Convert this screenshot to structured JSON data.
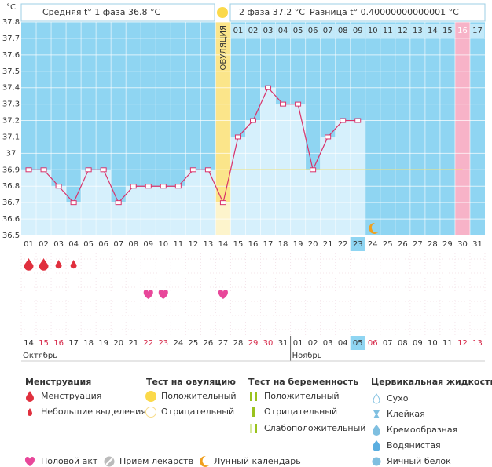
{
  "header": {
    "phase1": "Средняя t° 1 фаза 36.8 °C",
    "phase2": "2 фаза 37.2 °C",
    "difference": "Разница t° 0.40000000000001 °C"
  },
  "chart_data": {
    "type": "line",
    "y_unit": "°C",
    "categories": [
      "01",
      "02",
      "03",
      "04",
      "05",
      "06",
      "07",
      "08",
      "09",
      "10",
      "11",
      "12",
      "13",
      "14",
      "15",
      "16",
      "17",
      "18",
      "19",
      "20",
      "21",
      "22",
      "23",
      "24",
      "25",
      "26",
      "27",
      "28",
      "29",
      "30",
      "31"
    ],
    "values": [
      36.9,
      36.9,
      36.8,
      36.7,
      36.9,
      36.9,
      36.7,
      36.8,
      36.8,
      36.8,
      36.8,
      36.9,
      36.9,
      36.7,
      37.1,
      37.2,
      37.4,
      37.3,
      37.3,
      36.9,
      37.1,
      37.2,
      37.2,
      null,
      null,
      null,
      null,
      null,
      null,
      null,
      null
    ],
    "ylim": [
      36.5,
      37.8
    ],
    "yticks": [
      36.5,
      36.6,
      36.7,
      36.8,
      36.9,
      37,
      37.1,
      37.2,
      37.3,
      37.4,
      37.5,
      37.6,
      37.7,
      37.8
    ],
    "grid": true,
    "color": "#d9326a",
    "fill_color": "#d6f0fc",
    "background_color": "#8fd5f2",
    "ovulation_day": "14",
    "ovulation_label": "ОВУЛЯЦИЯ",
    "coverline": 36.9,
    "today": "23",
    "phase2_days": [
      "01",
      "02",
      "03",
      "04",
      "05",
      "06",
      "07",
      "08",
      "09",
      "10",
      "11",
      "12",
      "13",
      "14",
      "15",
      "16",
      "17"
    ],
    "phase2_highlight": "16",
    "dates": [
      "14",
      "15",
      "16",
      "17",
      "18",
      "19",
      "20",
      "21",
      "22",
      "23",
      "24",
      "25",
      "26",
      "27",
      "28",
      "29",
      "30",
      "31",
      "01",
      "02",
      "03",
      "04",
      "05",
      "06",
      "07",
      "08",
      "09",
      "10",
      "11",
      "12",
      "13"
    ],
    "date_colors": [
      "#333",
      "#d62a4a",
      "#d62a4a",
      "#333",
      "#333",
      "#333",
      "#333",
      "#333",
      "#d62a4a",
      "#d62a4a",
      "#333",
      "#333",
      "#333",
      "#333",
      "#333",
      "#d62a4a",
      "#d62a4a",
      "#333",
      "#333",
      "#333",
      "#333",
      "#333",
      "#333",
      "#d62a4a",
      "#333",
      "#333",
      "#333",
      "#333",
      "#333",
      "#d62a4a",
      "#d62a4a"
    ],
    "date_today": "05",
    "months": [
      {
        "name": "Октябрь",
        "start": "14"
      },
      {
        "name": "Ноябрь",
        "start": "01"
      }
    ],
    "menstruation": [
      {
        "day": "01",
        "size": "large"
      },
      {
        "day": "02",
        "size": "large"
      },
      {
        "day": "03",
        "size": "small"
      },
      {
        "day": "04",
        "size": "small"
      }
    ],
    "intercourse": [
      "09",
      "10",
      "14"
    ],
    "moon": [
      "24"
    ]
  },
  "legend": {
    "groups": [
      {
        "title": "Менструация",
        "items": [
          "Менструация",
          "Небольшие выделения"
        ]
      },
      {
        "title": "Тест на овуляцию",
        "items": [
          "Положительный",
          "Отрицательный"
        ]
      },
      {
        "title": "Тест на беременность",
        "items": [
          "Положительный",
          "Отрицательный",
          "Слабоположительный"
        ]
      },
      {
        "title": "Цервикальная жидкость",
        "items": [
          "Сухо",
          "Клейкая",
          "Кремообразная",
          "Водянистая",
          "Яичный белок"
        ]
      }
    ],
    "bottom": [
      "Половой акт",
      "Прием лекарств",
      "Лунный календарь"
    ]
  }
}
